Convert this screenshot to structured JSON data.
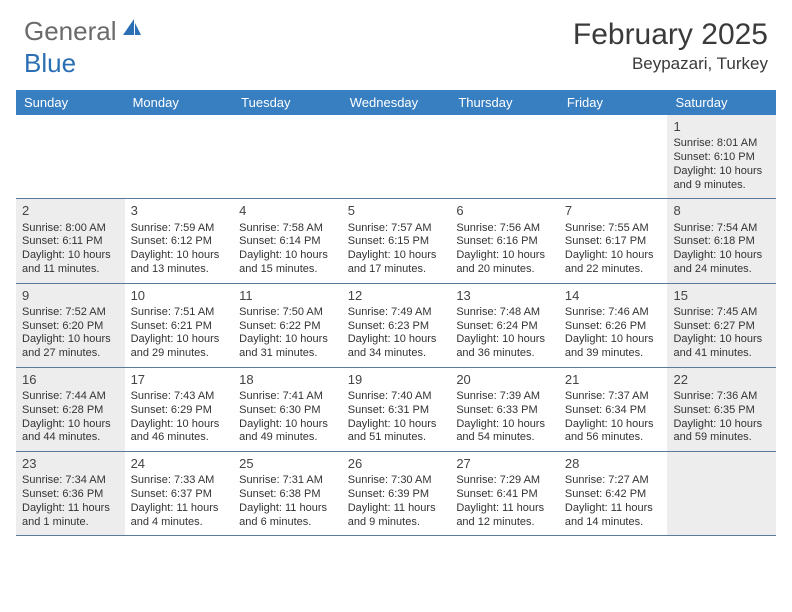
{
  "brand": {
    "part1": "General",
    "part2": "Blue"
  },
  "title": {
    "month": "February 2025",
    "location": "Beypazari, Turkey"
  },
  "colors": {
    "header_bg": "#387fc2",
    "header_text": "#ffffff",
    "border": "#5a7a99",
    "shade": "#ededed",
    "text": "#333333",
    "title_text": "#3a3a3a"
  },
  "day_headers": [
    "Sunday",
    "Monday",
    "Tuesday",
    "Wednesday",
    "Thursday",
    "Friday",
    "Saturday"
  ],
  "weeks": [
    [
      {
        "num": "",
        "sunrise": "",
        "sunset": "",
        "daylight": "",
        "shade": false
      },
      {
        "num": "",
        "sunrise": "",
        "sunset": "",
        "daylight": "",
        "shade": false
      },
      {
        "num": "",
        "sunrise": "",
        "sunset": "",
        "daylight": "",
        "shade": false
      },
      {
        "num": "",
        "sunrise": "",
        "sunset": "",
        "daylight": "",
        "shade": false
      },
      {
        "num": "",
        "sunrise": "",
        "sunset": "",
        "daylight": "",
        "shade": false
      },
      {
        "num": "",
        "sunrise": "",
        "sunset": "",
        "daylight": "",
        "shade": false
      },
      {
        "num": "1",
        "sunrise": "Sunrise: 8:01 AM",
        "sunset": "Sunset: 6:10 PM",
        "daylight": "Daylight: 10 hours and 9 minutes.",
        "shade": true
      }
    ],
    [
      {
        "num": "2",
        "sunrise": "Sunrise: 8:00 AM",
        "sunset": "Sunset: 6:11 PM",
        "daylight": "Daylight: 10 hours and 11 minutes.",
        "shade": true
      },
      {
        "num": "3",
        "sunrise": "Sunrise: 7:59 AM",
        "sunset": "Sunset: 6:12 PM",
        "daylight": "Daylight: 10 hours and 13 minutes.",
        "shade": false
      },
      {
        "num": "4",
        "sunrise": "Sunrise: 7:58 AM",
        "sunset": "Sunset: 6:14 PM",
        "daylight": "Daylight: 10 hours and 15 minutes.",
        "shade": false
      },
      {
        "num": "5",
        "sunrise": "Sunrise: 7:57 AM",
        "sunset": "Sunset: 6:15 PM",
        "daylight": "Daylight: 10 hours and 17 minutes.",
        "shade": false
      },
      {
        "num": "6",
        "sunrise": "Sunrise: 7:56 AM",
        "sunset": "Sunset: 6:16 PM",
        "daylight": "Daylight: 10 hours and 20 minutes.",
        "shade": false
      },
      {
        "num": "7",
        "sunrise": "Sunrise: 7:55 AM",
        "sunset": "Sunset: 6:17 PM",
        "daylight": "Daylight: 10 hours and 22 minutes.",
        "shade": false
      },
      {
        "num": "8",
        "sunrise": "Sunrise: 7:54 AM",
        "sunset": "Sunset: 6:18 PM",
        "daylight": "Daylight: 10 hours and 24 minutes.",
        "shade": true
      }
    ],
    [
      {
        "num": "9",
        "sunrise": "Sunrise: 7:52 AM",
        "sunset": "Sunset: 6:20 PM",
        "daylight": "Daylight: 10 hours and 27 minutes.",
        "shade": true
      },
      {
        "num": "10",
        "sunrise": "Sunrise: 7:51 AM",
        "sunset": "Sunset: 6:21 PM",
        "daylight": "Daylight: 10 hours and 29 minutes.",
        "shade": false
      },
      {
        "num": "11",
        "sunrise": "Sunrise: 7:50 AM",
        "sunset": "Sunset: 6:22 PM",
        "daylight": "Daylight: 10 hours and 31 minutes.",
        "shade": false
      },
      {
        "num": "12",
        "sunrise": "Sunrise: 7:49 AM",
        "sunset": "Sunset: 6:23 PM",
        "daylight": "Daylight: 10 hours and 34 minutes.",
        "shade": false
      },
      {
        "num": "13",
        "sunrise": "Sunrise: 7:48 AM",
        "sunset": "Sunset: 6:24 PM",
        "daylight": "Daylight: 10 hours and 36 minutes.",
        "shade": false
      },
      {
        "num": "14",
        "sunrise": "Sunrise: 7:46 AM",
        "sunset": "Sunset: 6:26 PM",
        "daylight": "Daylight: 10 hours and 39 minutes.",
        "shade": false
      },
      {
        "num": "15",
        "sunrise": "Sunrise: 7:45 AM",
        "sunset": "Sunset: 6:27 PM",
        "daylight": "Daylight: 10 hours and 41 minutes.",
        "shade": true
      }
    ],
    [
      {
        "num": "16",
        "sunrise": "Sunrise: 7:44 AM",
        "sunset": "Sunset: 6:28 PM",
        "daylight": "Daylight: 10 hours and 44 minutes.",
        "shade": true
      },
      {
        "num": "17",
        "sunrise": "Sunrise: 7:43 AM",
        "sunset": "Sunset: 6:29 PM",
        "daylight": "Daylight: 10 hours and 46 minutes.",
        "shade": false
      },
      {
        "num": "18",
        "sunrise": "Sunrise: 7:41 AM",
        "sunset": "Sunset: 6:30 PM",
        "daylight": "Daylight: 10 hours and 49 minutes.",
        "shade": false
      },
      {
        "num": "19",
        "sunrise": "Sunrise: 7:40 AM",
        "sunset": "Sunset: 6:31 PM",
        "daylight": "Daylight: 10 hours and 51 minutes.",
        "shade": false
      },
      {
        "num": "20",
        "sunrise": "Sunrise: 7:39 AM",
        "sunset": "Sunset: 6:33 PM",
        "daylight": "Daylight: 10 hours and 54 minutes.",
        "shade": false
      },
      {
        "num": "21",
        "sunrise": "Sunrise: 7:37 AM",
        "sunset": "Sunset: 6:34 PM",
        "daylight": "Daylight: 10 hours and 56 minutes.",
        "shade": false
      },
      {
        "num": "22",
        "sunrise": "Sunrise: 7:36 AM",
        "sunset": "Sunset: 6:35 PM",
        "daylight": "Daylight: 10 hours and 59 minutes.",
        "shade": true
      }
    ],
    [
      {
        "num": "23",
        "sunrise": "Sunrise: 7:34 AM",
        "sunset": "Sunset: 6:36 PM",
        "daylight": "Daylight: 11 hours and 1 minute.",
        "shade": true
      },
      {
        "num": "24",
        "sunrise": "Sunrise: 7:33 AM",
        "sunset": "Sunset: 6:37 PM",
        "daylight": "Daylight: 11 hours and 4 minutes.",
        "shade": false
      },
      {
        "num": "25",
        "sunrise": "Sunrise: 7:31 AM",
        "sunset": "Sunset: 6:38 PM",
        "daylight": "Daylight: 11 hours and 6 minutes.",
        "shade": false
      },
      {
        "num": "26",
        "sunrise": "Sunrise: 7:30 AM",
        "sunset": "Sunset: 6:39 PM",
        "daylight": "Daylight: 11 hours and 9 minutes.",
        "shade": false
      },
      {
        "num": "27",
        "sunrise": "Sunrise: 7:29 AM",
        "sunset": "Sunset: 6:41 PM",
        "daylight": "Daylight: 11 hours and 12 minutes.",
        "shade": false
      },
      {
        "num": "28",
        "sunrise": "Sunrise: 7:27 AM",
        "sunset": "Sunset: 6:42 PM",
        "daylight": "Daylight: 11 hours and 14 minutes.",
        "shade": false
      },
      {
        "num": "",
        "sunrise": "",
        "sunset": "",
        "daylight": "",
        "shade": true
      }
    ]
  ]
}
